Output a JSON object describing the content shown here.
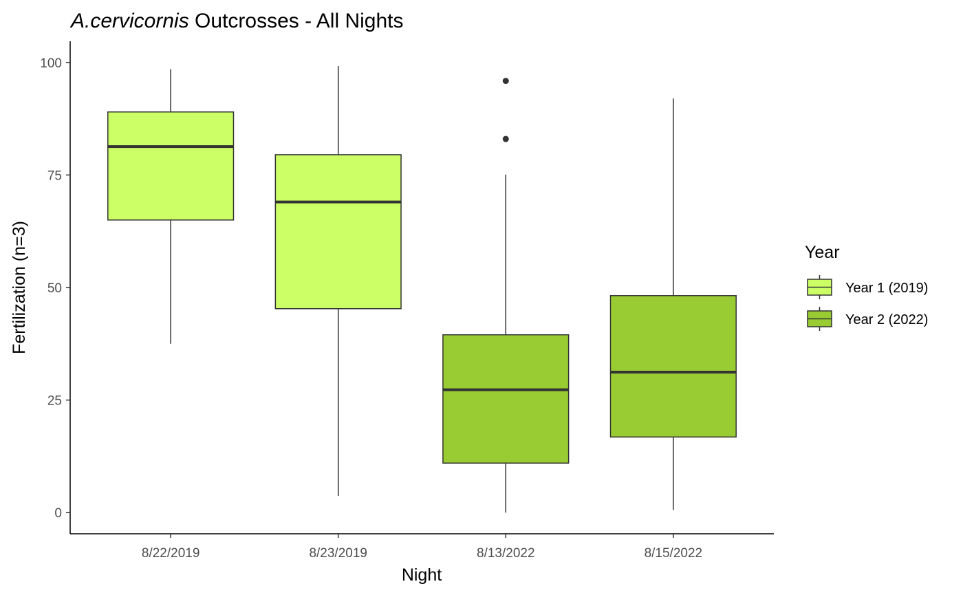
{
  "chart_data": {
    "type": "box",
    "title_italic": "A.cervicornis",
    "title_rest": " Outcrosses - All Nights",
    "xlabel": "Night",
    "ylabel": "Fertilization (n=3)",
    "ylim": [
      -4.7,
      104.7
    ],
    "yticks": [
      0,
      25,
      50,
      75,
      100
    ],
    "grid": false,
    "legend": {
      "title": "Year",
      "position": "right",
      "entries": [
        {
          "label": "Year 1 (2019)",
          "color": "#CCFF66"
        },
        {
          "label": "Year 2 (2022)",
          "color": "#99CC33"
        }
      ]
    },
    "categories": [
      "8/22/2019",
      "8/23/2019",
      "8/13/2022",
      "8/15/2022"
    ],
    "boxes": [
      {
        "category": "8/22/2019",
        "year": "Year 1 (2019)",
        "min": 37.5,
        "q1": 65.0,
        "median": 81.3,
        "q3": 89.0,
        "max": 98.5,
        "outliers": []
      },
      {
        "category": "8/23/2019",
        "year": "Year 1 (2019)",
        "min": 3.7,
        "q1": 45.3,
        "median": 69.0,
        "q3": 79.5,
        "max": 99.2,
        "outliers": []
      },
      {
        "category": "8/13/2022",
        "year": "Year 2 (2022)",
        "min": 0.0,
        "q1": 11.0,
        "median": 27.3,
        "q3": 39.5,
        "max": 75.1,
        "outliers": [
          83.0,
          95.9
        ]
      },
      {
        "category": "8/15/2022",
        "year": "Year 2 (2022)",
        "min": 0.6,
        "q1": 16.8,
        "median": 31.2,
        "q3": 48.2,
        "max": 92.0,
        "outliers": []
      }
    ],
    "colors": {
      "year1": "#CCFF66",
      "year2": "#99CC33",
      "line": "#333333",
      "axis": "#000000",
      "tick_text": "#4d4d4d"
    }
  }
}
